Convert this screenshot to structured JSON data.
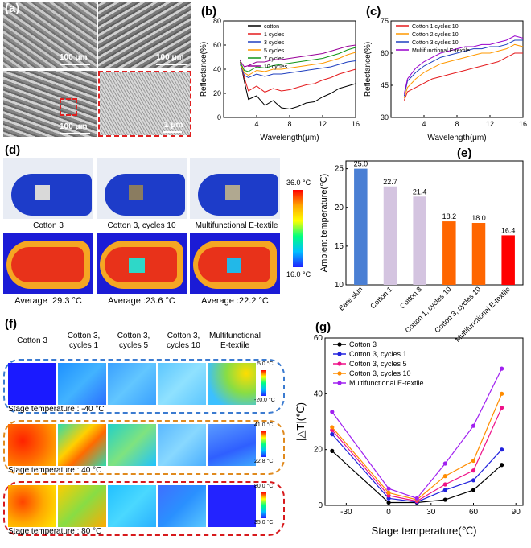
{
  "panel_labels": {
    "a": "(a)",
    "b": "(b)",
    "c": "(c)",
    "d": "(d)",
    "e": "(e)",
    "f": "(f)",
    "g": "(g)"
  },
  "panel_a": {
    "scale_1": "100 μm",
    "scale_2": "100 μm",
    "scale_3": "100 μm",
    "scale_4": "1 μm"
  },
  "panel_d": {
    "captions": [
      "Cotton 3",
      "Cotton 3, cycles 10",
      "Multifunctional E-textile"
    ],
    "averages": [
      "Average :29.3 °C",
      "Average :23.6 °C",
      "Average :22.2 °C"
    ],
    "colorbar_max": "36.0 °C",
    "colorbar_min": "16.0 °C"
  },
  "panel_f": {
    "headers": [
      "Cotton 3",
      "Cotton 3,\ncycles 1",
      "Cotton 3,\ncycles 5",
      "Cotton 3,\ncycles 10",
      "Multifunctional\nE-textile"
    ],
    "rows": [
      {
        "stage": "Stage temperature : -40 °C",
        "max": "5.0 °C",
        "min": "-20.0 °C",
        "color": "#3b7bd0"
      },
      {
        "stage": "Stage temperature : 40 °C",
        "max": "41.0 °C",
        "min": "22.8 °C",
        "color": "#e08a1e"
      },
      {
        "stage": "Stage temperature : 80 °C",
        "max": "80.0 °C",
        "min": "35.0 °C",
        "color": "#d7191c"
      }
    ]
  },
  "chart_data": [
    {
      "panel": "b",
      "type": "line",
      "xlabel": "Wavelength(μm)",
      "ylabel": "Reflectance(%)",
      "xlim": [
        0,
        16
      ],
      "ylim": [
        0,
        80
      ],
      "xticks": [
        4,
        8,
        12,
        16
      ],
      "yticks": [
        0,
        20,
        40,
        60,
        80
      ],
      "legend": "top-left",
      "x": [
        2,
        2.5,
        3,
        4,
        5,
        6,
        7,
        8,
        9,
        10,
        11,
        12,
        13,
        14,
        15,
        16
      ],
      "series": [
        {
          "name": "cotton",
          "color": "#000000",
          "values": [
            48,
            30,
            15,
            18,
            10,
            14,
            8,
            7,
            9,
            12,
            13,
            17,
            20,
            24,
            26,
            28
          ]
        },
        {
          "name": "1 cycles",
          "color": "#e41a1c",
          "values": [
            46,
            33,
            22,
            26,
            21,
            24,
            22,
            23,
            25,
            27,
            28,
            31,
            33,
            36,
            38,
            40
          ]
        },
        {
          "name": "3 cycles",
          "color": "#1f3fbf",
          "values": [
            44,
            35,
            33,
            36,
            34,
            36,
            36,
            37,
            38,
            39,
            40,
            41,
            42,
            44,
            46,
            47
          ]
        },
        {
          "name": "5 cycles",
          "color": "#ff9900",
          "values": [
            45,
            37,
            35,
            39,
            38,
            40,
            40,
            41,
            42,
            43,
            44,
            45,
            47,
            49,
            52,
            54
          ]
        },
        {
          "name": "7 cycles",
          "color": "#109618",
          "values": [
            46,
            39,
            38,
            42,
            41,
            43,
            44,
            45,
            46,
            47,
            48,
            49,
            51,
            53,
            56,
            58
          ]
        },
        {
          "name": "10 cycles",
          "color": "#990099",
          "values": [
            47,
            42,
            43,
            46,
            46,
            48,
            48,
            49,
            50,
            51,
            52,
            53,
            55,
            57,
            59,
            60
          ]
        }
      ]
    },
    {
      "panel": "c",
      "type": "line",
      "xlabel": "Wavelength(μm)",
      "ylabel": "Reflectance(%)",
      "xlim": [
        0,
        16
      ],
      "ylim": [
        30,
        75
      ],
      "xticks": [
        4,
        8,
        12,
        16
      ],
      "yticks": [
        30,
        45,
        60,
        75
      ],
      "legend": "top-left",
      "x": [
        1.6,
        2,
        3,
        4,
        5,
        6,
        7,
        8,
        9,
        10,
        11,
        12,
        13,
        14,
        15,
        16
      ],
      "series": [
        {
          "name": "Cotton 1,cycles 10",
          "color": "#e41a1c",
          "values": [
            38,
            42,
            44,
            46,
            48,
            49,
            50,
            51,
            52,
            53,
            54,
            55,
            56,
            58,
            60,
            60
          ]
        },
        {
          "name": "Cotton 2,cycles 10",
          "color": "#ff9900",
          "values": [
            39,
            44,
            48,
            51,
            53,
            55,
            56,
            57,
            58,
            59,
            60,
            60,
            61,
            62,
            64,
            63
          ]
        },
        {
          "name": "Cotton 3,cycles 10",
          "color": "#1f3fbf",
          "values": [
            40,
            47,
            51,
            54,
            56,
            58,
            59,
            60,
            61,
            62,
            62,
            63,
            63,
            64,
            66,
            66
          ]
        },
        {
          "name": "Multifunctional E-textile",
          "color": "#9900cc",
          "values": [
            41,
            48,
            53,
            56,
            58,
            60,
            61,
            62,
            63,
            63,
            64,
            64,
            65,
            66,
            68,
            67
          ]
        }
      ]
    },
    {
      "panel": "e",
      "type": "bar",
      "ylabel": "Ambient temperature(℃)",
      "ylim": [
        10,
        26
      ],
      "yticks": [
        10,
        15,
        20,
        25
      ],
      "categories": [
        "Bare skin",
        "Cotton 1",
        "Cotton 3",
        "Cotton 1, cycles 10",
        "Cotton 3, cycles 10",
        "Multifunctional E-textile"
      ],
      "values": [
        25.0,
        22.7,
        21.4,
        18.2,
        18.0,
        16.4
      ],
      "labels": [
        "25.0",
        "22.7",
        "21.4",
        "18.2",
        "18.0",
        "16.4"
      ],
      "colors": [
        "#4a7fd4",
        "#d4c4e0",
        "#d4c4e0",
        "#ff6600",
        "#ff6600",
        "#ff0000"
      ]
    },
    {
      "panel": "g",
      "type": "line",
      "xlabel": "Stage temperature(℃)",
      "ylabel": "|△T|(℃)",
      "xlim": [
        -45,
        95
      ],
      "ylim": [
        0,
        60
      ],
      "xticks": [
        -30,
        0,
        30,
        60,
        90
      ],
      "yticks": [
        0,
        20,
        40,
        60
      ],
      "legend": "top-left",
      "x": [
        -40,
        0,
        20,
        40,
        60,
        80
      ],
      "series": [
        {
          "name": "Cotton 3",
          "color": "#000000",
          "values": [
            19.5,
            1.0,
            1.0,
            2.0,
            5.5,
            14.5
          ]
        },
        {
          "name": "Cotton 3, cycles 1",
          "color": "#2222dd",
          "values": [
            25.5,
            2.5,
            1.2,
            5.5,
            9.0,
            20.0
          ]
        },
        {
          "name": "Cotton 3, cycles 5",
          "color": "#ee1188",
          "values": [
            27,
            3.5,
            1.5,
            7.5,
            12.5,
            35
          ]
        },
        {
          "name": "Cotton 3, cycles 10",
          "color": "#ff8c00",
          "values": [
            28,
            4.5,
            2.0,
            10.5,
            16,
            40
          ]
        },
        {
          "name": "Multifunctional E-textile",
          "color": "#a020f0",
          "values": [
            33.5,
            6,
            2.5,
            15,
            28.5,
            49
          ]
        }
      ]
    }
  ]
}
